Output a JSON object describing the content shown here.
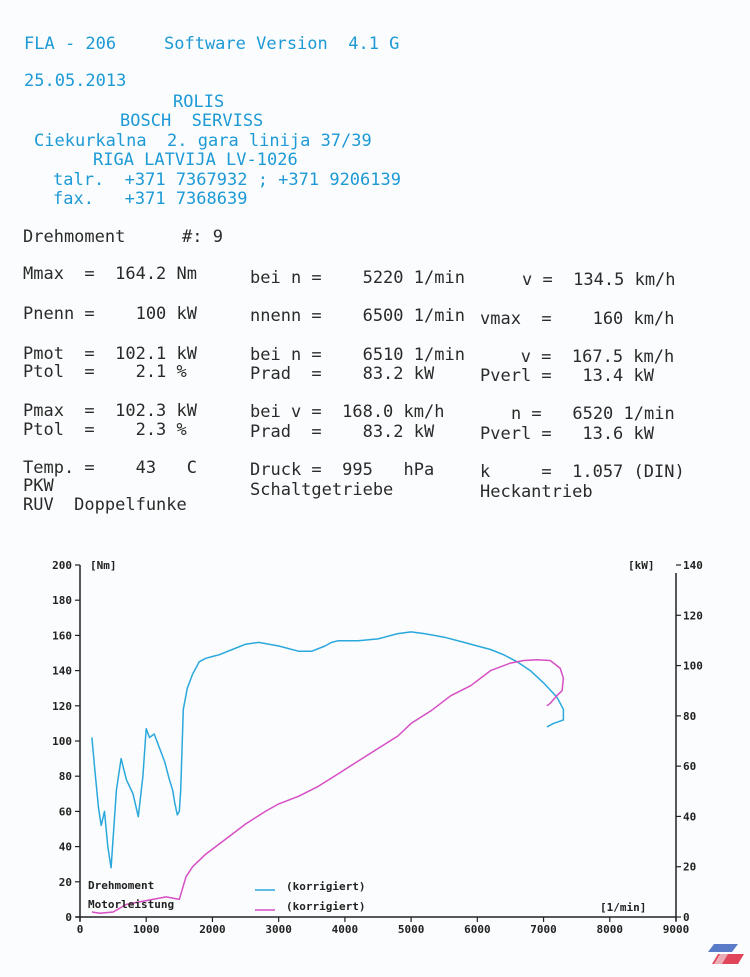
{
  "header": {
    "model": "FLA - 206",
    "software": "Software Version  4.1 G",
    "date": "25.05.2013",
    "name": "ROLIS",
    "company": "BOSCH  SERVISS",
    "street": "Ciekurkalna  2. gara linija 37/39",
    "city": "RIGA LATVIJA LV-1026",
    "phone": "talr.  +371 7367932 ; +371 9206139",
    "fax": "fax.   +371 7368639"
  },
  "report": {
    "title": "Drehmoment",
    "run": "#: 9",
    "rows": [
      [
        "Mmax  =  164.2 Nm",
        "bei n =    5220 1/min",
        "v =  134.5 km/h"
      ],
      [
        "Pnenn =    100 kW",
        "nnenn =    6500 1/min",
        "vmax  =    160 km/h"
      ],
      [
        "Pmot  =  102.1 kW",
        "bei n =    6510 1/min",
        "   v =  167.5 km/h"
      ],
      [
        "Ptol  =    2.1 %",
        "Prad  =    83.2 kW",
        "Pverl =   13.4 kW"
      ],
      [
        "Pmax  =  102.3 kW",
        "bei v =  168.0 km/h",
        "    n =   6520 1/min"
      ],
      [
        "Ptol  =    2.3 %",
        "Prad  =    83.2 kW",
        "Pverl =   13.6 kW"
      ],
      [
        "Temp. =    43   C",
        "Druck =  995   hPa",
        "k     =  1.057 (DIN)"
      ],
      [
        "PKW",
        "Schaltgetriebe",
        "Heckantrieb"
      ],
      [
        "RUV  Doppelfunke",
        "",
        ""
      ]
    ]
  },
  "chart_data": {
    "type": "line",
    "x_unit": "[1/min]",
    "x_ticks": [
      "0",
      "1000",
      "2000",
      "3000",
      "4000",
      "5000",
      "6000",
      "7000",
      "8000",
      "9000"
    ],
    "xlim": [
      0,
      9000
    ],
    "y_left_unit": "[Nm]",
    "y_left_ticks": [
      "0",
      "20",
      "40",
      "60",
      "80",
      "100",
      "120",
      "140",
      "160",
      "180",
      "200"
    ],
    "ylim_left": [
      0,
      200
    ],
    "y_right_unit": "[kW]",
    "y_right_ticks": [
      "0",
      "20",
      "40",
      "60",
      "80",
      "100",
      "120",
      "140"
    ],
    "ylim_right": [
      0,
      140
    ],
    "legend": [
      {
        "name": "Drehmoment",
        "note": "(korrigiert)",
        "color": "#2aa8dc"
      },
      {
        "name": "Motorleistung",
        "note": "(korrigiert)",
        "color": "#d64fc4"
      }
    ],
    "series": [
      {
        "name": "Drehmoment",
        "axis": "left",
        "color": "#2aa8dc",
        "x": [
          180,
          220,
          280,
          320,
          370,
          420,
          470,
          550,
          620,
          700,
          800,
          880,
          950,
          1000,
          1050,
          1120,
          1200,
          1280,
          1350,
          1400,
          1430,
          1470,
          1500,
          1520,
          1560,
          1620,
          1700,
          1800,
          1900,
          2000,
          2100,
          2300,
          2500,
          2700,
          3000,
          3300,
          3500,
          3700,
          3800,
          3900,
          4000,
          4200,
          4500,
          4800,
          5000,
          5200,
          5500,
          5800,
          6000,
          6200,
          6400,
          6600,
          6800,
          7000,
          7100,
          7200,
          7300,
          7300,
          7150,
          7050
        ],
        "y": [
          102,
          85,
          62,
          52,
          60,
          40,
          28,
          72,
          90,
          78,
          70,
          57,
          80,
          107,
          102,
          104,
          96,
          88,
          78,
          72,
          65,
          58,
          60,
          72,
          118,
          130,
          138,
          145,
          147,
          148,
          149,
          152,
          155,
          156,
          154,
          151,
          151,
          154,
          156,
          157,
          157,
          157,
          158,
          161,
          162,
          161,
          159,
          156,
          154,
          152,
          149,
          145,
          140,
          133,
          129,
          125,
          118,
          112,
          110,
          108
        ]
      },
      {
        "name": "Motorleistung",
        "axis": "right",
        "color": "#d64fc4",
        "x": [
          180,
          300,
          500,
          700,
          900,
          1100,
          1300,
          1500,
          1600,
          1700,
          1900,
          2200,
          2500,
          2800,
          3000,
          3300,
          3600,
          3900,
          4200,
          4500,
          4800,
          5000,
          5300,
          5600,
          5900,
          6200,
          6500,
          6700,
          6900,
          7100,
          7250,
          7300,
          7280,
          7200,
          7100,
          7050
        ],
        "y": [
          2,
          1.5,
          2,
          5,
          6,
          7,
          8,
          7,
          16,
          20,
          25,
          31,
          37,
          42,
          45,
          48,
          52,
          57,
          62,
          67,
          72,
          77,
          82,
          88,
          92,
          98,
          101,
          102,
          102.3,
          102,
          99,
          95,
          90,
          88,
          85,
          84
        ]
      }
    ]
  }
}
